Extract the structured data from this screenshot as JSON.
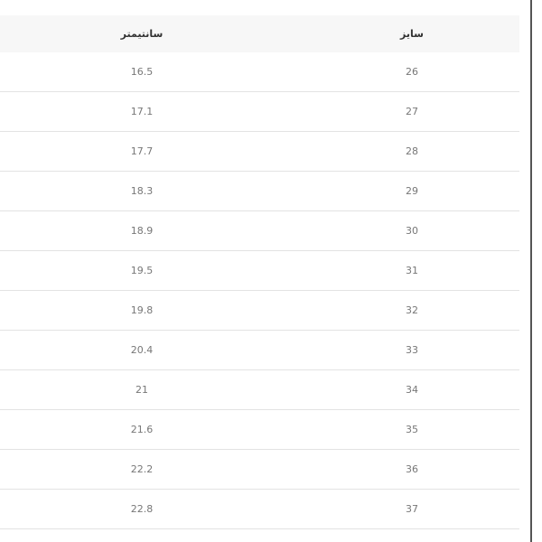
{
  "table": {
    "headers": {
      "centimeter": "سانتیمتر",
      "size": "سایز"
    },
    "rows": [
      {
        "size": "26",
        "cm": "16.5"
      },
      {
        "size": "27",
        "cm": "17.1"
      },
      {
        "size": "28",
        "cm": "17.7"
      },
      {
        "size": "29",
        "cm": "18.3"
      },
      {
        "size": "30",
        "cm": "18.9"
      },
      {
        "size": "31",
        "cm": "19.5"
      },
      {
        "size": "32",
        "cm": "19.8"
      },
      {
        "size": "33",
        "cm": "20.4"
      },
      {
        "size": "34",
        "cm": "21"
      },
      {
        "size": "35",
        "cm": "21.6"
      },
      {
        "size": "36",
        "cm": "22.2"
      },
      {
        "size": "37",
        "cm": "22.8"
      }
    ]
  }
}
